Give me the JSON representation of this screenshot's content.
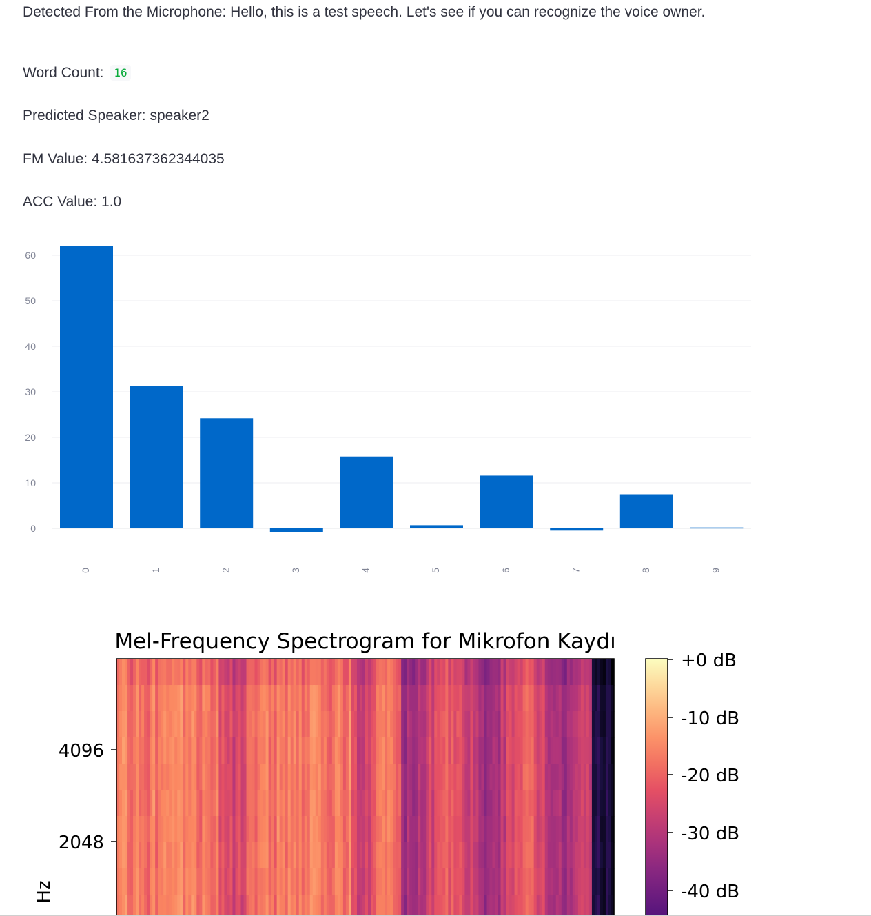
{
  "results": {
    "detected_label": "Detected From the Microphone:",
    "detected_text": "Hello, this is a test speech. Let's see if you can recognize the voice owner.",
    "word_count_label": "Word Count:",
    "word_count_value": "16",
    "speaker_label": "Predicted Speaker:",
    "speaker_value": "speaker2",
    "fm_label": "FM Value:",
    "fm_value": "4.581637362344035",
    "acc_label": "ACC Value:",
    "acc_value": "1.0"
  },
  "colors": {
    "bar": "#0068c9",
    "text": "#31333f",
    "axis_text": "#808495",
    "code": "#09ab3b"
  },
  "chart_data": [
    {
      "type": "bar",
      "categories": [
        "0",
        "1",
        "2",
        "3",
        "4",
        "5",
        "6",
        "7",
        "8",
        "9"
      ],
      "values": [
        62,
        31.3,
        24.2,
        -0.9,
        15.8,
        0.7,
        11.6,
        -0.5,
        7.5,
        0.2
      ],
      "yticks": [
        "0",
        "10",
        "20",
        "30",
        "40",
        "50",
        "60"
      ],
      "ylim": [
        -1,
        63
      ],
      "grid": true,
      "xlabel": "",
      "ylabel": ""
    },
    {
      "type": "heatmap",
      "title": "Mel-Frequency Spectrogram for Mikrofon Kaydı",
      "ylabel": "Hz",
      "yticks": [
        "4096",
        "2048"
      ],
      "colorbar_ticks": [
        "+0 dB",
        "-10 dB",
        "-20 dB",
        "-30 dB",
        "-40 dB"
      ],
      "colormap": "magma"
    }
  ]
}
